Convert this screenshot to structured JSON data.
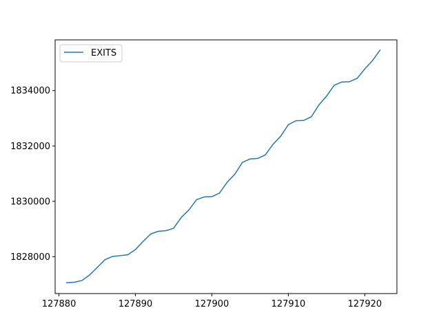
{
  "chart_data": {
    "type": "line",
    "title": "",
    "xlabel": "",
    "ylabel": "",
    "xlim": [
      127879.5,
      127924.2
    ],
    "ylim": [
      1826670,
      1835830
    ],
    "x_ticks": [
      127880,
      127890,
      127900,
      127910,
      127920
    ],
    "y_ticks": [
      1828000,
      1830000,
      1832000,
      1834000
    ],
    "x_tick_labels": [
      "127880",
      "127890",
      "127900",
      "127910",
      "127920"
    ],
    "y_tick_labels": [
      "1828000",
      "1830000",
      "1832000",
      "1834000"
    ],
    "grid": false,
    "legend": {
      "placement": "top-left"
    },
    "series": [
      {
        "name": "EXITS",
        "color": "#1f77b4",
        "x": [
          127881,
          127882,
          127883,
          127884,
          127885,
          127886,
          127887,
          127888,
          127889,
          127890,
          127891,
          127892,
          127893,
          127894,
          127895,
          127896,
          127897,
          127898,
          127899,
          127900,
          127901,
          127902,
          127903,
          127904,
          127905,
          127906,
          127907,
          127908,
          127909,
          127910,
          127911,
          127912,
          127913,
          127914,
          127915,
          127916,
          127917,
          127918,
          127919,
          127920,
          127921,
          127922
        ],
        "values": [
          1827060,
          1827080,
          1827140,
          1827340,
          1827610,
          1827890,
          1828010,
          1828040,
          1828070,
          1828260,
          1828550,
          1828820,
          1828920,
          1828940,
          1829030,
          1829420,
          1829690,
          1830060,
          1830160,
          1830170,
          1830300,
          1830690,
          1830980,
          1831410,
          1831530,
          1831550,
          1831680,
          1832060,
          1832350,
          1832770,
          1832910,
          1832920,
          1833050,
          1833480,
          1833800,
          1834190,
          1834310,
          1834320,
          1834440,
          1834780,
          1835080,
          1835460
        ]
      }
    ]
  }
}
